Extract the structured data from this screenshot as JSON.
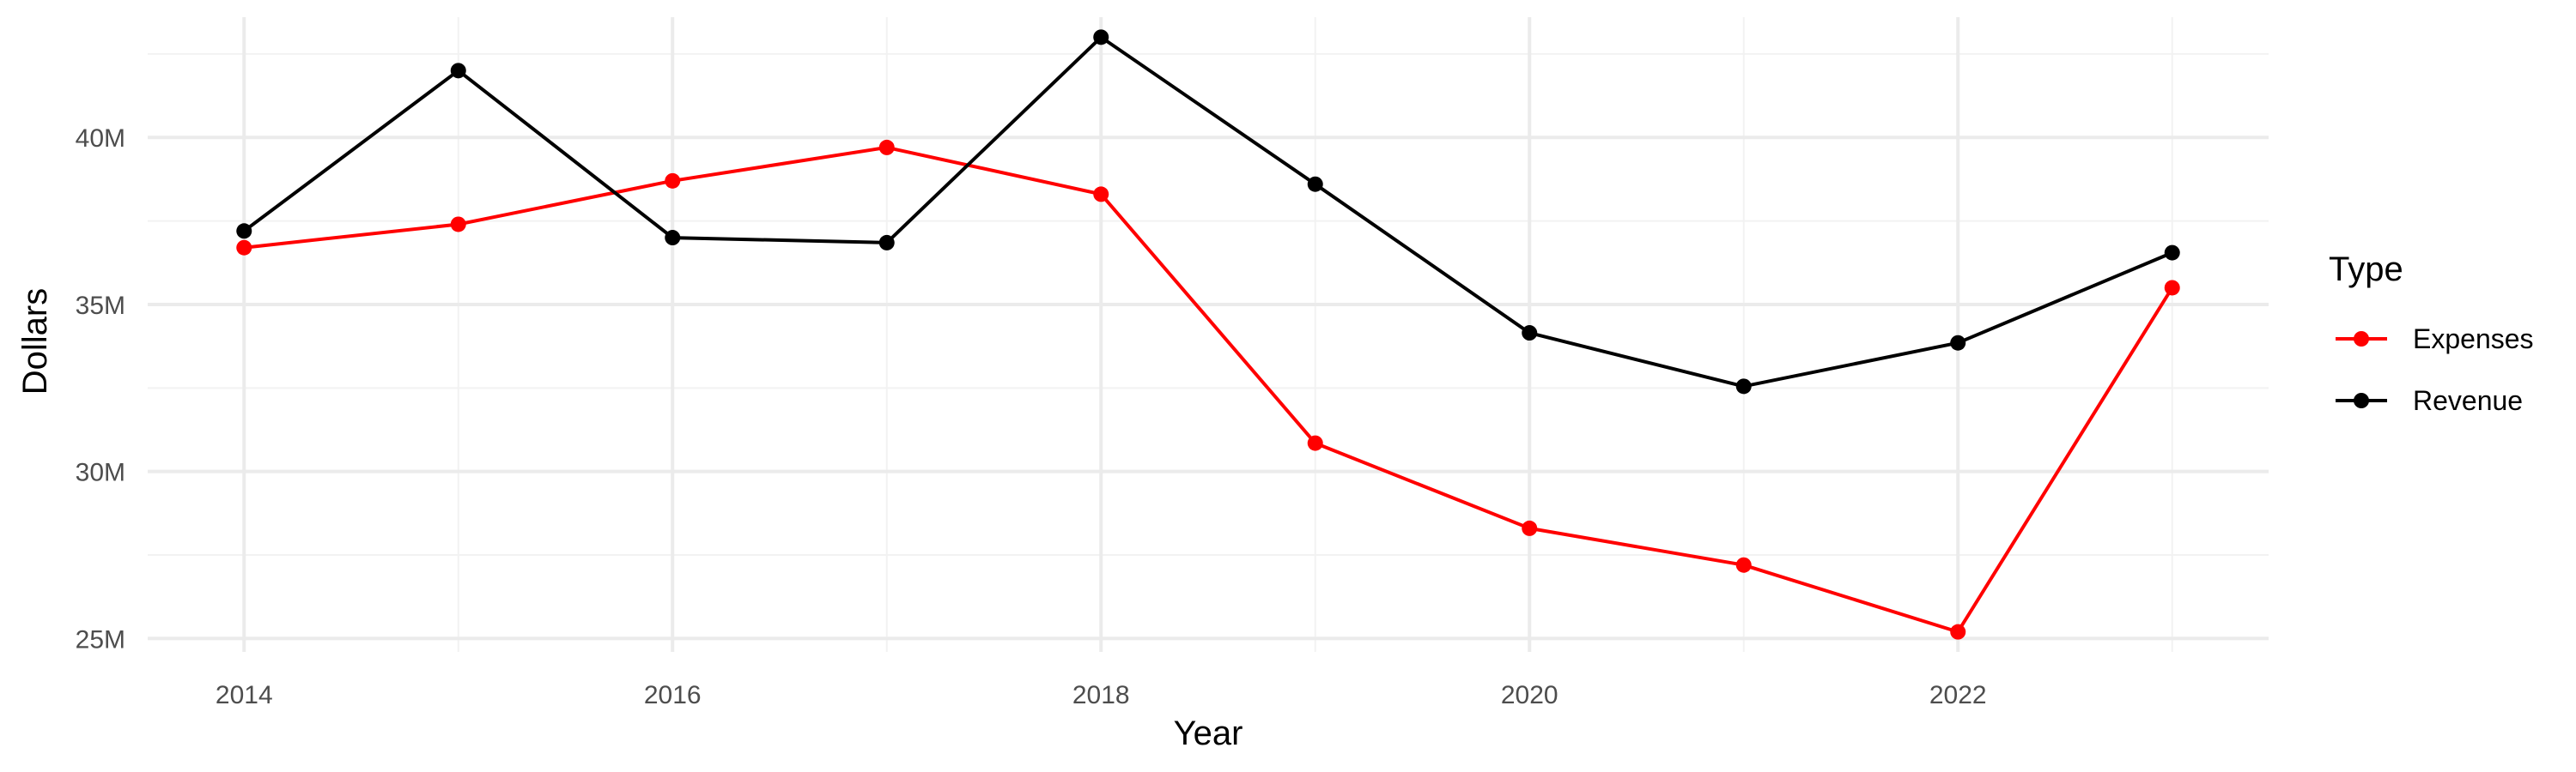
{
  "chart_data": {
    "type": "line",
    "x": [
      2014,
      2015,
      2016,
      2017,
      2018,
      2019,
      2020,
      2021,
      2022,
      2023
    ],
    "series": [
      {
        "name": "Expenses",
        "color": "#ff0000",
        "values": [
          36.7,
          37.4,
          38.7,
          39.7,
          38.3,
          30.85,
          28.3,
          27.2,
          25.2,
          35.5
        ]
      },
      {
        "name": "Revenue",
        "color": "#000000",
        "values": [
          37.2,
          42.0,
          37.0,
          36.85,
          43.0,
          38.6,
          34.15,
          32.55,
          33.85,
          36.55
        ]
      }
    ],
    "xlabel": "Year",
    "ylabel": "Dollars",
    "x_ticks": [
      2014,
      2016,
      2018,
      2020,
      2022
    ],
    "x_tick_labels": [
      "2014",
      "2016",
      "2018",
      "2020",
      "2022"
    ],
    "y_ticks": [
      25,
      30,
      35,
      40
    ],
    "y_tick_labels": [
      "25M",
      "30M",
      "35M",
      "40M"
    ],
    "xlim": [
      2013.55,
      2023.45
    ],
    "ylim": [
      24.6,
      43.6
    ],
    "grid": true,
    "legend": {
      "title": "Type",
      "position": "right"
    }
  }
}
